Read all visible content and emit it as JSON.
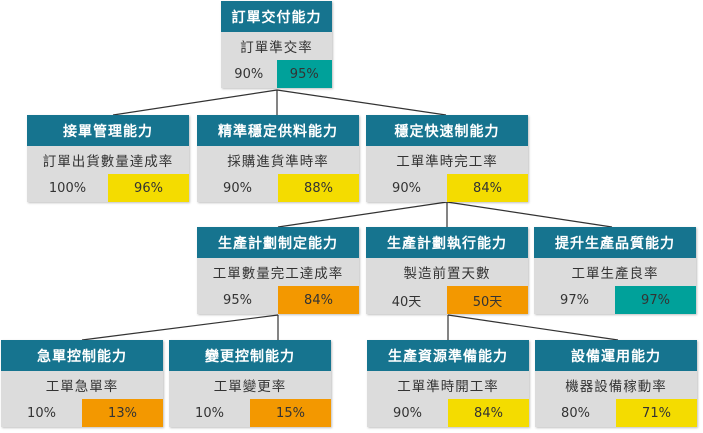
{
  "colors": {
    "header": "#16748f",
    "body": "#dcdcdc",
    "good": "#00a19a",
    "warning": "#f4dc00",
    "bad": "#f39800"
  },
  "nodes": [
    {
      "id": "root",
      "title": "訂單交付能力",
      "metric": "訂單準交率",
      "target": "90%",
      "actual": "95%",
      "status": "good"
    },
    {
      "id": "a",
      "title": "接單管理能力",
      "metric": "訂單出貨數量達成率",
      "target": "100%",
      "actual": "96%",
      "status": "warning"
    },
    {
      "id": "b",
      "title": "精準穩定供料能力",
      "metric": "採購進貨準時率",
      "target": "90%",
      "actual": "88%",
      "status": "warning"
    },
    {
      "id": "c",
      "title": "穩定快速制能力",
      "metric": "工單準時完工率",
      "target": "90%",
      "actual": "84%",
      "status": "warning"
    },
    {
      "id": "d",
      "title": "生產計劃制定能力",
      "metric": "工單數量完工達成率",
      "target": "95%",
      "actual": "84%",
      "status": "bad"
    },
    {
      "id": "e",
      "title": "生產計劃執行能力",
      "metric": "製造前置天數",
      "target": "40天",
      "actual": "50天",
      "status": "bad"
    },
    {
      "id": "f",
      "title": "提升生產品質能力",
      "metric": "工單生產良率",
      "target": "97%",
      "actual": "97%",
      "status": "good"
    },
    {
      "id": "g",
      "title": "急單控制能力",
      "metric": "工單急單率",
      "target": "10%",
      "actual": "13%",
      "status": "bad"
    },
    {
      "id": "h",
      "title": "變更控制能力",
      "metric": "工單變更率",
      "target": "10%",
      "actual": "15%",
      "status": "bad"
    },
    {
      "id": "i",
      "title": "生產資源準備能力",
      "metric": "工單準時開工率",
      "target": "90%",
      "actual": "84%",
      "status": "warning"
    },
    {
      "id": "j",
      "title": "設備運用能力",
      "metric": "機器設備稼動率",
      "target": "80%",
      "actual": "71%",
      "status": "warning"
    }
  ],
  "edges": [
    [
      "root",
      "a"
    ],
    [
      "root",
      "b"
    ],
    [
      "root",
      "c"
    ],
    [
      "c",
      "d"
    ],
    [
      "c",
      "e"
    ],
    [
      "c",
      "f"
    ],
    [
      "d",
      "g"
    ],
    [
      "d",
      "h"
    ],
    [
      "e",
      "i"
    ],
    [
      "e",
      "j"
    ]
  ]
}
